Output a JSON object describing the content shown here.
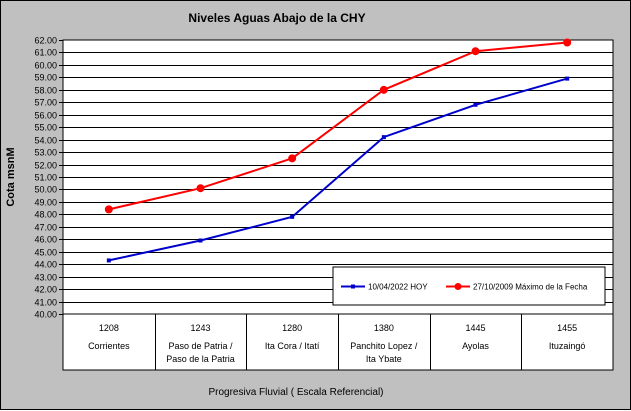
{
  "chart_data": {
    "type": "line",
    "title": "Niveles Aguas Abajo de la CHY",
    "ylabel": "Cota msnM",
    "xlabel": "Progresiva Fluvial ( Escala Referencial)",
    "ylim": [
      40.0,
      62.0
    ],
    "ytick_step": 1.0,
    "grid": true,
    "legend_position": "bottom-right",
    "categories": [
      {
        "code": "1208",
        "name": [
          "Corrientes"
        ]
      },
      {
        "code": "1243",
        "name": [
          "Paso de Patria /",
          "Paso de la Patria"
        ]
      },
      {
        "code": "1280",
        "name": [
          "Ita Cora / Itatí"
        ]
      },
      {
        "code": "1380",
        "name": [
          "Panchito Lopez /",
          "Ita Ybate"
        ]
      },
      {
        "code": "1445",
        "name": [
          "Ayolas"
        ]
      },
      {
        "code": "1455",
        "name": [
          "Ituzaingó"
        ]
      }
    ],
    "series": [
      {
        "name": "10/04/2022 HOY",
        "color": "#0000cc",
        "marker": "small-square",
        "values": [
          44.3,
          45.9,
          47.8,
          54.2,
          56.8,
          58.9
        ]
      },
      {
        "name": "27/10/2009 Máximo de la Fecha",
        "color": "#ff0000",
        "marker": "circle",
        "values": [
          48.4,
          50.1,
          52.5,
          58.0,
          61.1,
          61.8
        ]
      }
    ]
  },
  "colors": {
    "chart_background": "#c0c0c0",
    "plot_background": "#ffffff",
    "grid": "#000000"
  }
}
